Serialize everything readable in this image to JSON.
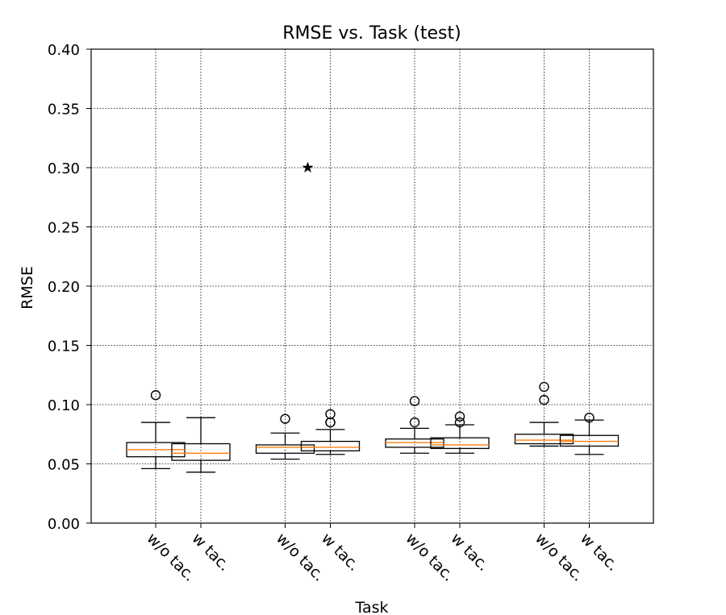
{
  "chart_data": {
    "type": "box",
    "title": "RMSE vs. Task (test)",
    "xlabel": "Task",
    "ylabel": "RMSE",
    "ylim": [
      0,
      0.4
    ],
    "yticks": [
      "0.00",
      "0.05",
      "0.10",
      "0.15",
      "0.20",
      "0.25",
      "0.30",
      "0.35",
      "0.40"
    ],
    "grid": true,
    "colors": {
      "median": "#ff7f0e",
      "box": "#000000",
      "grid": "#000000"
    },
    "groups": [
      {
        "boxes": [
          {
            "label": "w/o tac.",
            "whislo": 0.046,
            "q1": 0.056,
            "med": 0.062,
            "q3": 0.068,
            "whishi": 0.085,
            "fliers": [
              0.108
            ]
          },
          {
            "label": "w tac.",
            "whislo": 0.043,
            "q1": 0.053,
            "med": 0.059,
            "q3": 0.067,
            "whishi": 0.089,
            "fliers": []
          }
        ]
      },
      {
        "boxes": [
          {
            "label": "w/o tac.",
            "whislo": 0.054,
            "q1": 0.059,
            "med": 0.064,
            "q3": 0.066,
            "whishi": 0.076,
            "fliers": [
              0.088
            ]
          },
          {
            "label": "w tac.",
            "whislo": 0.058,
            "q1": 0.061,
            "med": 0.064,
            "q3": 0.069,
            "whishi": 0.079,
            "fliers": [
              0.085,
              0.085,
              0.092
            ]
          }
        ]
      },
      {
        "boxes": [
          {
            "label": "w/o tac.",
            "whislo": 0.059,
            "q1": 0.064,
            "med": 0.068,
            "q3": 0.071,
            "whishi": 0.08,
            "fliers": [
              0.085,
              0.103
            ]
          },
          {
            "label": "w tac.",
            "whislo": 0.059,
            "q1": 0.063,
            "med": 0.066,
            "q3": 0.072,
            "whishi": 0.083,
            "fliers": [
              0.085,
              0.09
            ]
          }
        ]
      },
      {
        "boxes": [
          {
            "label": "w/o tac.",
            "whislo": 0.065,
            "q1": 0.067,
            "med": 0.07,
            "q3": 0.075,
            "whishi": 0.085,
            "fliers": [
              0.104,
              0.115
            ]
          },
          {
            "label": "w tac.",
            "whislo": 0.058,
            "q1": 0.065,
            "med": 0.069,
            "q3": 0.074,
            "whishi": 0.087,
            "fliers": [
              0.089
            ]
          }
        ]
      }
    ],
    "markers": [
      {
        "group": 2,
        "y": 0.3,
        "symbol": "star"
      }
    ]
  }
}
